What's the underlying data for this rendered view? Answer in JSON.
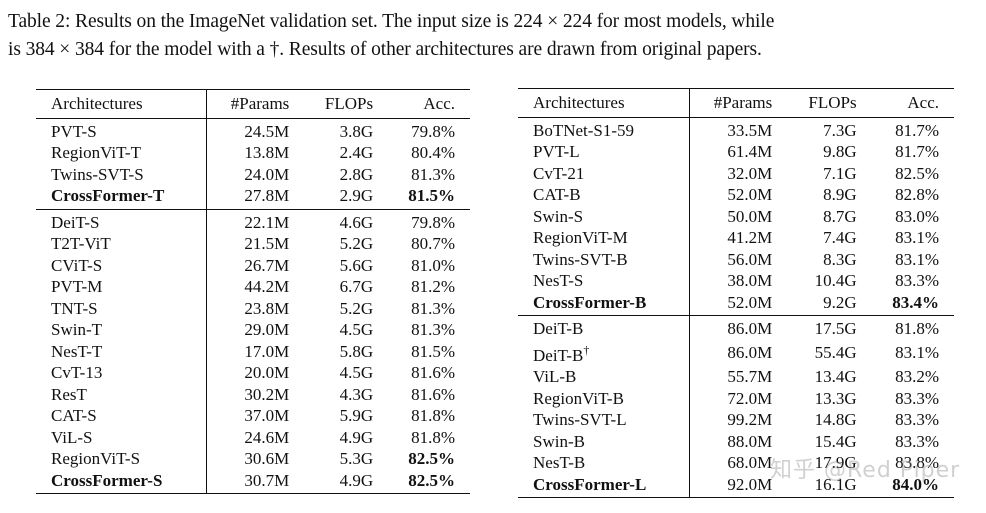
{
  "caption": {
    "line1": "Table 2: Results on the ImageNet validation set. The input size is 224 × 224 for most models, while",
    "line2": "is 384 × 384 for the model with a †. Results of other architectures are drawn from original papers."
  },
  "columns": [
    "Architectures",
    "#Params",
    "FLOPs",
    "Acc."
  ],
  "left_table": {
    "groups": [
      [
        {
          "arch": "PVT-S",
          "params": "24.5M",
          "flops": "3.8G",
          "acc": "79.8%",
          "bold": false,
          "acc_bold": false
        },
        {
          "arch": "RegionViT-T",
          "params": "13.8M",
          "flops": "2.4G",
          "acc": "80.4%",
          "bold": false,
          "acc_bold": false
        },
        {
          "arch": "Twins-SVT-S",
          "params": "24.0M",
          "flops": "2.8G",
          "acc": "81.3%",
          "bold": false,
          "acc_bold": false
        },
        {
          "arch": "CrossFormer-T",
          "params": "27.8M",
          "flops": "2.9G",
          "acc": "81.5%",
          "bold": true,
          "acc_bold": true
        }
      ],
      [
        {
          "arch": "DeiT-S",
          "params": "22.1M",
          "flops": "4.6G",
          "acc": "79.8%",
          "bold": false,
          "acc_bold": false
        },
        {
          "arch": "T2T-ViT",
          "params": "21.5M",
          "flops": "5.2G",
          "acc": "80.7%",
          "bold": false,
          "acc_bold": false
        },
        {
          "arch": "CViT-S",
          "params": "26.7M",
          "flops": "5.6G",
          "acc": "81.0%",
          "bold": false,
          "acc_bold": false
        },
        {
          "arch": "PVT-M",
          "params": "44.2M",
          "flops": "6.7G",
          "acc": "81.2%",
          "bold": false,
          "acc_bold": false
        },
        {
          "arch": "TNT-S",
          "params": "23.8M",
          "flops": "5.2G",
          "acc": "81.3%",
          "bold": false,
          "acc_bold": false
        },
        {
          "arch": "Swin-T",
          "params": "29.0M",
          "flops": "4.5G",
          "acc": "81.3%",
          "bold": false,
          "acc_bold": false
        },
        {
          "arch": "NesT-T",
          "params": "17.0M",
          "flops": "5.8G",
          "acc": "81.5%",
          "bold": false,
          "acc_bold": false
        },
        {
          "arch": "CvT-13",
          "params": "20.0M",
          "flops": "4.5G",
          "acc": "81.6%",
          "bold": false,
          "acc_bold": false
        },
        {
          "arch": "ResT",
          "params": "30.2M",
          "flops": "4.3G",
          "acc": "81.6%",
          "bold": false,
          "acc_bold": false
        },
        {
          "arch": "CAT-S",
          "params": "37.0M",
          "flops": "5.9G",
          "acc": "81.8%",
          "bold": false,
          "acc_bold": false
        },
        {
          "arch": "ViL-S",
          "params": "24.6M",
          "flops": "4.9G",
          "acc": "81.8%",
          "bold": false,
          "acc_bold": false
        },
        {
          "arch": "RegionViT-S",
          "params": "30.6M",
          "flops": "5.3G",
          "acc": "82.5%",
          "bold": false,
          "acc_bold": true
        },
        {
          "arch": "CrossFormer-S",
          "params": "30.7M",
          "flops": "4.9G",
          "acc": "82.5%",
          "bold": true,
          "acc_bold": true
        }
      ]
    ]
  },
  "right_table": {
    "groups": [
      [
        {
          "arch": "BoTNet-S1-59",
          "params": "33.5M",
          "flops": "7.3G",
          "acc": "81.7%",
          "bold": false,
          "acc_bold": false
        },
        {
          "arch": "PVT-L",
          "params": "61.4M",
          "flops": "9.8G",
          "acc": "81.7%",
          "bold": false,
          "acc_bold": false
        },
        {
          "arch": "CvT-21",
          "params": "32.0M",
          "flops": "7.1G",
          "acc": "82.5%",
          "bold": false,
          "acc_bold": false
        },
        {
          "arch": "CAT-B",
          "params": "52.0M",
          "flops": "8.9G",
          "acc": "82.8%",
          "bold": false,
          "acc_bold": false
        },
        {
          "arch": "Swin-S",
          "params": "50.0M",
          "flops": "8.7G",
          "acc": "83.0%",
          "bold": false,
          "acc_bold": false
        },
        {
          "arch": "RegionViT-M",
          "params": "41.2M",
          "flops": "7.4G",
          "acc": "83.1%",
          "bold": false,
          "acc_bold": false
        },
        {
          "arch": "Twins-SVT-B",
          "params": "56.0M",
          "flops": "8.3G",
          "acc": "83.1%",
          "bold": false,
          "acc_bold": false
        },
        {
          "arch": "NesT-S",
          "params": "38.0M",
          "flops": "10.4G",
          "acc": "83.3%",
          "bold": false,
          "acc_bold": false
        },
        {
          "arch": "CrossFormer-B",
          "params": "52.0M",
          "flops": "9.2G",
          "acc": "83.4%",
          "bold": true,
          "acc_bold": true
        }
      ],
      [
        {
          "arch": "DeiT-B",
          "params": "86.0M",
          "flops": "17.5G",
          "acc": "81.8%",
          "bold": false,
          "acc_bold": false
        },
        {
          "arch": "DeiT-B",
          "dagger": "†",
          "params": "86.0M",
          "flops": "55.4G",
          "acc": "83.1%",
          "bold": false,
          "acc_bold": false
        },
        {
          "arch": "ViL-B",
          "params": "55.7M",
          "flops": "13.4G",
          "acc": "83.2%",
          "bold": false,
          "acc_bold": false
        },
        {
          "arch": "RegionViT-B",
          "params": "72.0M",
          "flops": "13.3G",
          "acc": "83.3%",
          "bold": false,
          "acc_bold": false
        },
        {
          "arch": "Twins-SVT-L",
          "params": "99.2M",
          "flops": "14.8G",
          "acc": "83.3%",
          "bold": false,
          "acc_bold": false
        },
        {
          "arch": "Swin-B",
          "params": "88.0M",
          "flops": "15.4G",
          "acc": "83.3%",
          "bold": false,
          "acc_bold": false
        },
        {
          "arch": "NesT-B",
          "params": "68.0M",
          "flops": "17.9G",
          "acc": "83.8%",
          "bold": false,
          "acc_bold": false
        },
        {
          "arch": "CrossFormer-L",
          "params": "92.0M",
          "flops": "16.1G",
          "acc": "84.0%",
          "bold": true,
          "acc_bold": true
        }
      ]
    ]
  },
  "watermark": "知乎 @Red Piper"
}
